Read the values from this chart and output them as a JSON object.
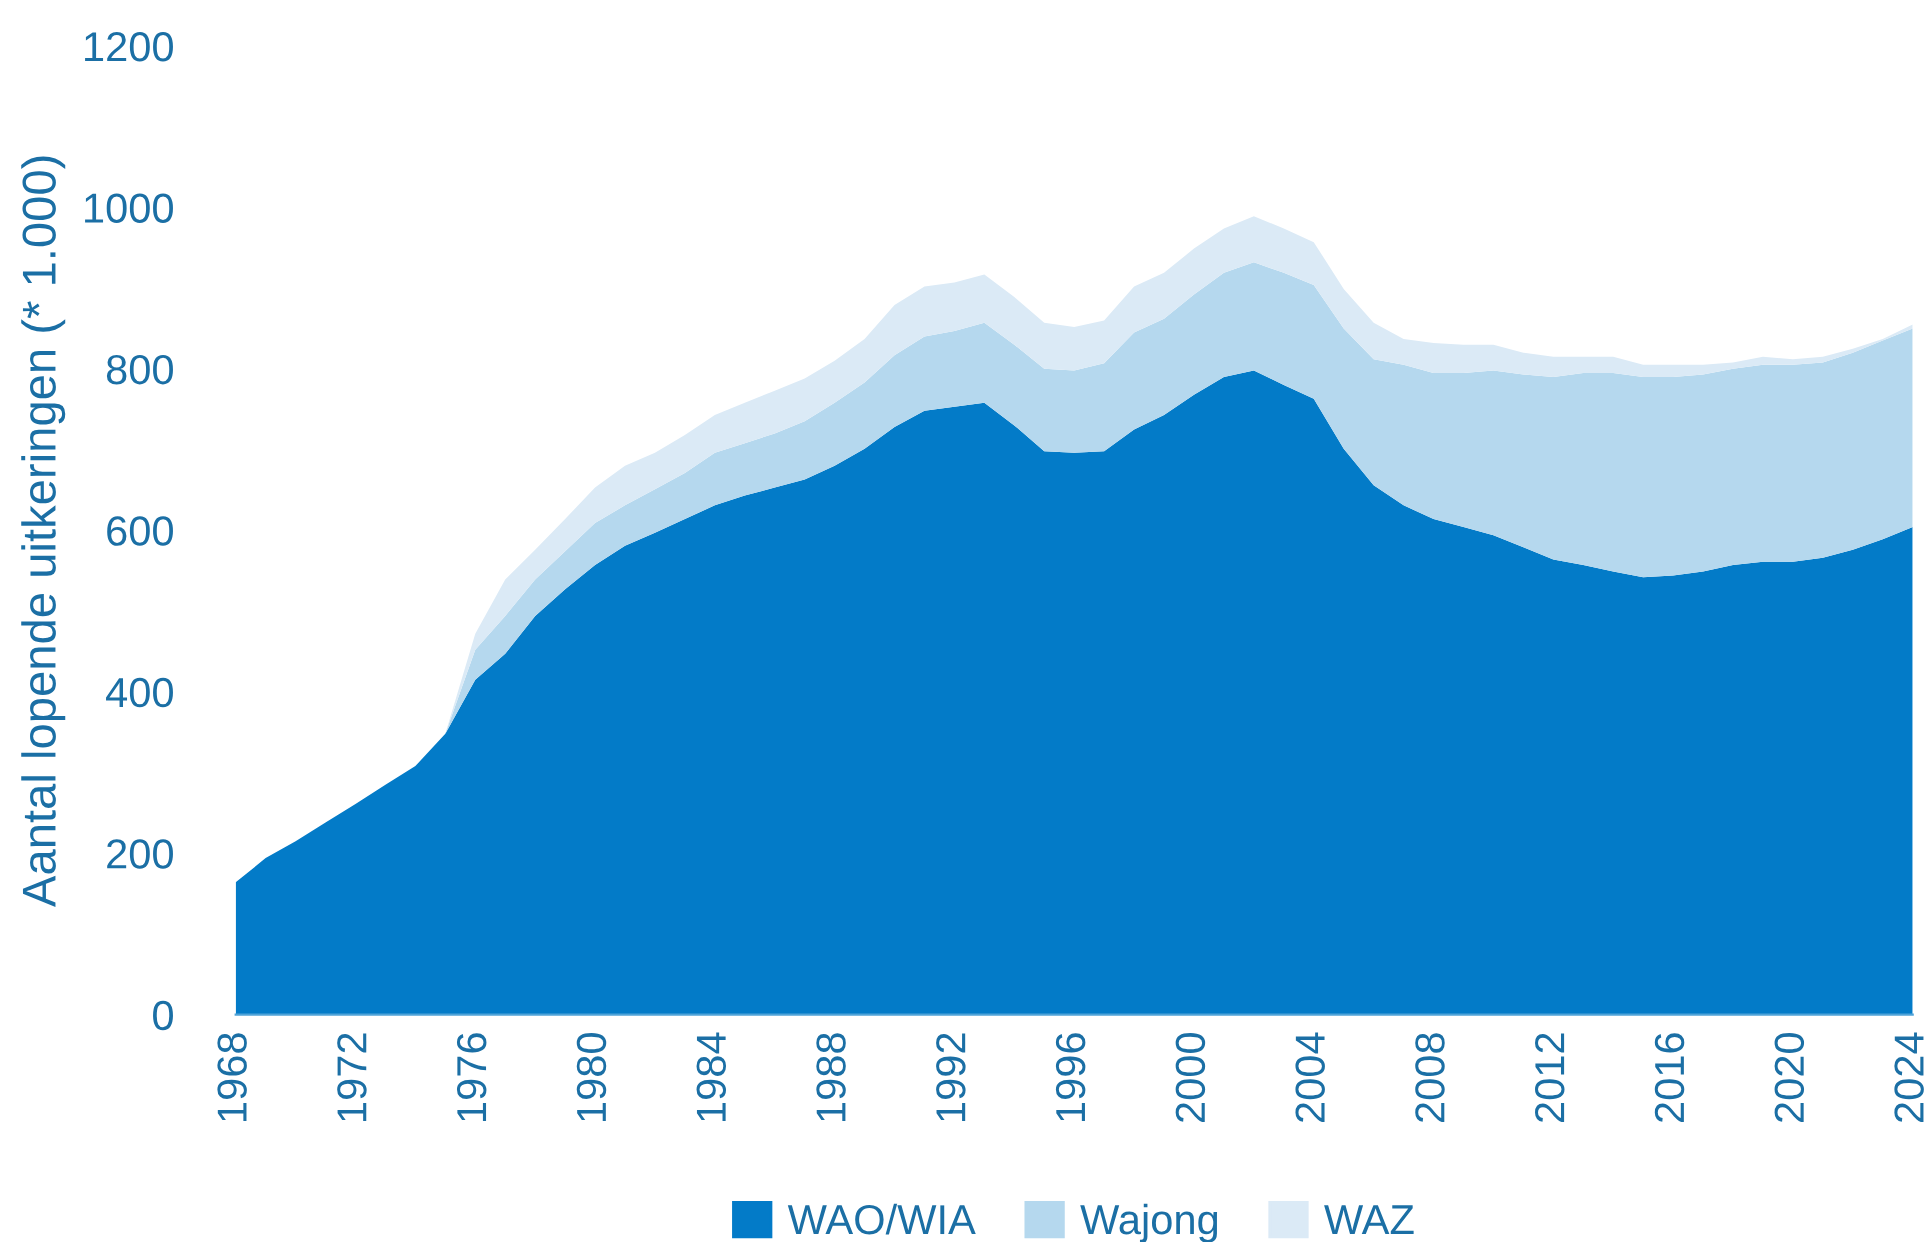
{
  "chart_data": {
    "type": "area",
    "stacked": true,
    "ylabel": "Aantal lopende uitkeringen (* 1.000)",
    "x": [
      1968,
      1969,
      1970,
      1971,
      1972,
      1973,
      1974,
      1975,
      1976,
      1977,
      1978,
      1979,
      1980,
      1981,
      1982,
      1983,
      1984,
      1985,
      1986,
      1987,
      1988,
      1989,
      1990,
      1991,
      1992,
      1993,
      1994,
      1995,
      1996,
      1997,
      1998,
      1999,
      2000,
      2001,
      2002,
      2003,
      2004,
      2005,
      2006,
      2007,
      2008,
      2009,
      2010,
      2011,
      2012,
      2013,
      2014,
      2015,
      2016,
      2017,
      2018,
      2019,
      2020,
      2021,
      2022,
      2023,
      2024
    ],
    "series": [
      {
        "name": "WAO/WIA",
        "color": "#037bc8",
        "values": [
          164,
          194,
          215,
          238,
          261,
          285,
          308,
          348,
          415,
          447,
          494,
          527,
          557,
          581,
          597,
          614,
          631,
          643,
          653,
          663,
          680,
          701,
          728,
          748,
          753,
          758,
          730,
          698,
          696,
          698,
          725,
          743,
          768,
          790,
          798,
          780,
          763,
          701,
          656,
          631,
          614,
          604,
          594,
          579,
          564,
          557,
          549,
          542,
          544,
          549,
          557,
          561,
          561,
          566,
          576,
          589,
          604
        ]
      },
      {
        "name": "Wajong",
        "color": "#b5d8ee",
        "values": [
          0,
          0,
          0,
          0,
          0,
          0,
          0,
          0,
          37,
          47,
          45,
          47,
          52,
          50,
          54,
          57,
          65,
          65,
          67,
          72,
          78,
          82,
          89,
          92,
          94,
          99,
          100,
          102,
          102,
          109,
          120,
          119,
          124,
          129,
          134,
          139,
          141,
          149,
          156,
          174,
          181,
          191,
          204,
          214,
          226,
          238,
          246,
          248,
          246,
          244,
          243,
          244,
          244,
          242,
          244,
          246,
          246
        ]
      },
      {
        "name": "WAZ",
        "color": "#dbeaf6",
        "values": [
          0,
          0,
          0,
          0,
          0,
          0,
          0,
          0,
          20,
          45,
          37,
          40,
          44,
          49,
          45,
          47,
          47,
          50,
          53,
          53,
          52,
          54,
          62,
          62,
          60,
          60,
          59,
          57,
          54,
          53,
          57,
          57,
          57,
          55,
          57,
          55,
          53,
          49,
          45,
          32,
          37,
          35,
          32,
          27,
          25,
          20,
          20,
          15,
          15,
          12,
          8,
          10,
          7,
          7,
          5,
          2,
          5
        ]
      }
    ],
    "xlim": [
      1968,
      2024
    ],
    "xticks": [
      1968,
      1972,
      1976,
      1980,
      1984,
      1988,
      1992,
      1996,
      2000,
      2004,
      2008,
      2012,
      2016,
      2020,
      2024
    ],
    "ylim": [
      0,
      1200
    ],
    "yticks": [
      0,
      200,
      400,
      600,
      800,
      1000,
      1200
    ],
    "grid": false,
    "legend": "bottom"
  }
}
